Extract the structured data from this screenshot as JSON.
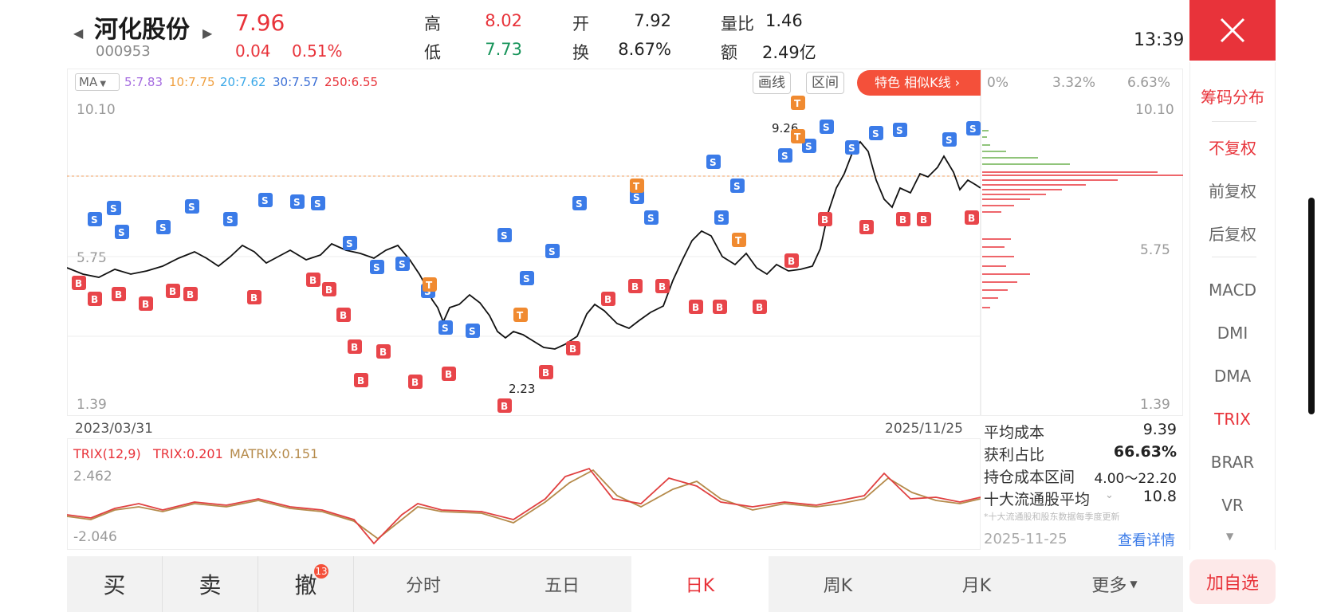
{
  "stock": {
    "name": "河化股份",
    "code": "000953",
    "price": "7.96",
    "change": "0.04",
    "change_pct": "0.51%"
  },
  "quote": {
    "high_label": "高",
    "high": "8.02",
    "low_label": "低",
    "low": "7.73",
    "open_label": "开",
    "open": "7.92",
    "turnover_label": "换",
    "turnover": "8.67%",
    "vol_ratio_label": "量比",
    "vol_ratio": "1.46",
    "amount_label": "额",
    "amount": "2.49亿"
  },
  "time": "13:39",
  "chart": {
    "ma_select": "MA",
    "ma_items": [
      {
        "text": "5:7.83",
        "color": "#a56be0"
      },
      {
        "text": "10:7.75",
        "color": "#f0a040"
      },
      {
        "text": "20:7.62",
        "color": "#3aa8e8"
      },
      {
        "text": "30:7.57",
        "color": "#3b6fd6"
      },
      {
        "text": "250:6.55",
        "color": "#e8333a"
      }
    ],
    "draw_btn": "画线",
    "range_btn": "区间",
    "special_btn": "特色  相似K线 ›",
    "y_top": "10.10",
    "y_mid": "5.75",
    "y_bottom": "1.39",
    "peak_label": "9.26",
    "trough_label": "2.23",
    "date_start": "2023/03/31",
    "date_end": "2025/11/25"
  },
  "dist": {
    "pct0": "0%",
    "pct1": "3.32%",
    "pct2": "6.63%",
    "y_top": "10.10",
    "y_mid": "5.75",
    "y_bottom": "1.39",
    "avg_cost_label": "平均成本",
    "avg_cost": "9.39",
    "profit_label": "获利占比",
    "profit": "66.63%",
    "range_label": "持仓成本区间",
    "range": "4.00～22.20",
    "top10_label": "十大流通股平均",
    "top10": "10.8",
    "note": "*十大流通股和股东数据每季度更新",
    "date": "2025-11-25",
    "detail_link": "查看详情"
  },
  "indicator": {
    "name": "TRIX(12,9)",
    "trix": "TRIX:0.201",
    "matrix": "MATRIX:0.151",
    "y_top": "2.462",
    "y_bottom": "-2.046"
  },
  "sidebar": {
    "items": [
      {
        "label": "筹码分布",
        "active": true
      },
      {
        "label": "不复权",
        "active": true
      },
      {
        "label": "前复权",
        "active": false
      },
      {
        "label": "后复权",
        "active": false
      },
      {
        "label": "MACD",
        "active": false
      },
      {
        "label": "DMI",
        "active": false
      },
      {
        "label": "DMA",
        "active": false
      },
      {
        "label": "TRIX",
        "active": true
      },
      {
        "label": "BRAR",
        "active": false
      },
      {
        "label": "VR",
        "active": false
      }
    ],
    "fav": "加自选"
  },
  "bottom": {
    "buy": "买",
    "sell": "卖",
    "cancel": "撤",
    "cancel_badge": "13",
    "tabs": [
      "分时",
      "五日",
      "日K",
      "周K",
      "月K",
      "更多"
    ],
    "active_tab": 2
  },
  "colors": {
    "red": "#e8333a",
    "green": "#17945a",
    "blue": "#3b7be8",
    "orange": "#f08a30"
  }
}
